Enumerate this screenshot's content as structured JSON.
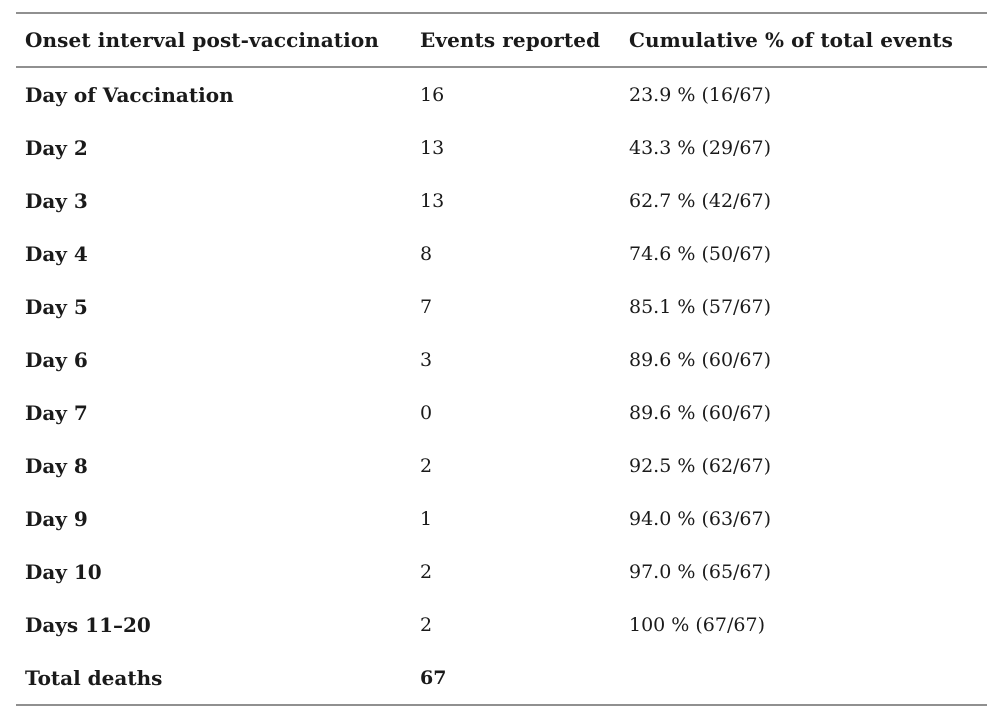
{
  "table": {
    "columns": [
      "Onset interval post-vaccination",
      "Events reported",
      "Cumulative % of total events"
    ],
    "rows": [
      {
        "interval": "Day of Vaccination",
        "events": "16",
        "cumulative": "23.9 % (16/67)",
        "is_total": false
      },
      {
        "interval": "Day 2",
        "events": "13",
        "cumulative": "43.3 % (29/67)",
        "is_total": false
      },
      {
        "interval": "Day 3",
        "events": "13",
        "cumulative": "62.7 % (42/67)",
        "is_total": false
      },
      {
        "interval": "Day 4",
        "events": "8",
        "cumulative": "74.6 % (50/67)",
        "is_total": false
      },
      {
        "interval": "Day 5",
        "events": "7",
        "cumulative": "85.1 % (57/67)",
        "is_total": false
      },
      {
        "interval": "Day 6",
        "events": "3",
        "cumulative": "89.6 % (60/67)",
        "is_total": false
      },
      {
        "interval": "Day 7",
        "events": "0",
        "cumulative": "89.6 % (60/67)",
        "is_total": false
      },
      {
        "interval": "Day 8",
        "events": "2",
        "cumulative": "92.5 % (62/67)",
        "is_total": false
      },
      {
        "interval": "Day 9",
        "events": "1",
        "cumulative": "94.0 % (63/67)",
        "is_total": false
      },
      {
        "interval": "Day 10",
        "events": "2",
        "cumulative": "97.0 % (65/67)",
        "is_total": false
      },
      {
        "interval": "Days 11–20",
        "events": "2",
        "cumulative": "100 % (67/67)",
        "is_total": false
      },
      {
        "interval": "Total deaths",
        "events": "67",
        "cumulative": "",
        "is_total": true
      }
    ]
  },
  "colors": {
    "text": "#1a1a1a",
    "rule": "#909090",
    "background": "#ffffff"
  }
}
